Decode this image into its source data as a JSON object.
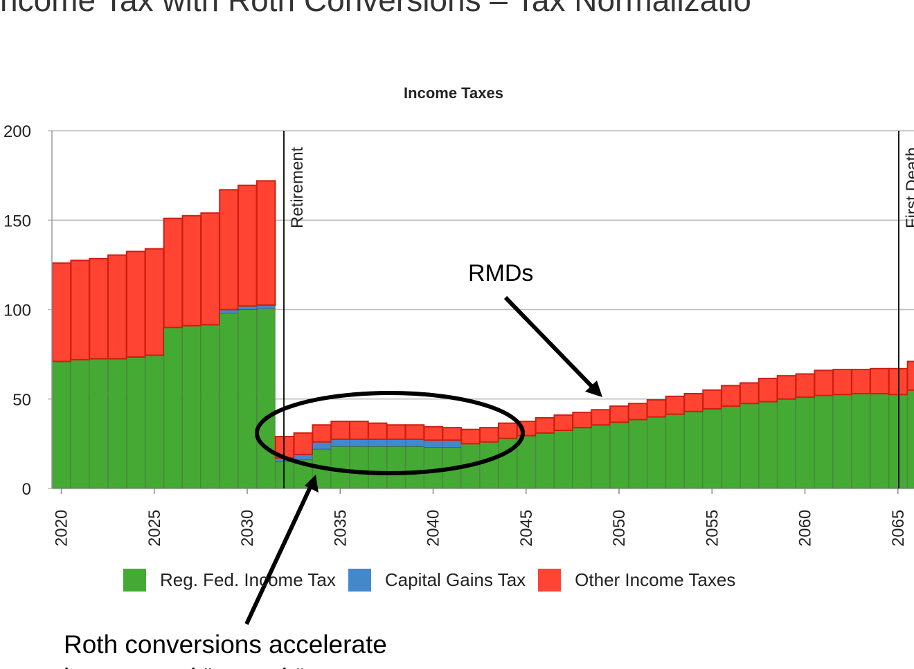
{
  "slide_title": "ncome Tax with Roth Conversions – Tax Normalizatio",
  "colors": {
    "reg_fed": "#44aa33",
    "cap_gains": "#4488cc",
    "other": "#ff4433",
    "bar_outline": "#cc1f10",
    "grid": "#bbbbbb",
    "axis_text": "#222222"
  },
  "annotations": {
    "rmds": "RMDs",
    "roth_line1": "Roth conversions accelerate",
    "roth_line2": "income and “smooth” taxes"
  },
  "chart_data": {
    "type": "bar",
    "stacked": true,
    "title": "Income Taxes",
    "xlabel": "",
    "ylabel": "",
    "ylim": [
      0,
      200
    ],
    "yticks": [
      0,
      50,
      100,
      150,
      200
    ],
    "xticks": [
      2020,
      2025,
      2030,
      2035,
      2040,
      2045,
      2050,
      2055,
      2060,
      2065
    ],
    "grid": true,
    "legend": "bottom",
    "categories": [
      2020,
      2021,
      2022,
      2023,
      2024,
      2025,
      2026,
      2027,
      2028,
      2029,
      2030,
      2031,
      2032,
      2033,
      2034,
      2035,
      2036,
      2037,
      2038,
      2039,
      2040,
      2041,
      2042,
      2043,
      2044,
      2045,
      2046,
      2047,
      2048,
      2049,
      2050,
      2051,
      2052,
      2053,
      2054,
      2055,
      2056,
      2057,
      2058,
      2059,
      2060,
      2061,
      2062,
      2063,
      2064,
      2065,
      2066
    ],
    "series": [
      {
        "name": "Reg. Fed. Income Tax",
        "values": [
          71,
          72,
          72.5,
          72.5,
          73.5,
          74.5,
          90,
          91,
          91.5,
          98,
          100,
          100.5,
          15,
          16,
          22,
          23.5,
          23.5,
          23.5,
          23.5,
          23.5,
          23,
          23,
          25,
          26,
          28,
          29.5,
          31,
          32.5,
          34,
          35.5,
          37,
          38.5,
          40,
          41.5,
          43,
          44.5,
          46,
          47.5,
          48.5,
          50,
          51,
          52,
          52.5,
          53,
          53,
          52.5,
          55
        ]
      },
      {
        "name": "Capital Gains Tax",
        "values": [
          0,
          0,
          0,
          0,
          0,
          0,
          0,
          0,
          0,
          2,
          2,
          2,
          2,
          3,
          4,
          4,
          4,
          4,
          4,
          4,
          4,
          4,
          0,
          0,
          0,
          0,
          0,
          0,
          0,
          0,
          0,
          0,
          0,
          0,
          0,
          0,
          0,
          0,
          0,
          0,
          0,
          0,
          0,
          0,
          0,
          0,
          0
        ]
      },
      {
        "name": "Other Income Taxes",
        "values": [
          55,
          55.5,
          56,
          58,
          59,
          59.5,
          61,
          61.5,
          62.5,
          67,
          67.5,
          69.5,
          12,
          12,
          9.5,
          10,
          10,
          9,
          8,
          8,
          7.5,
          7,
          8,
          8,
          8.5,
          8,
          8.5,
          8.5,
          8.5,
          8.5,
          9,
          9,
          9.5,
          10,
          10,
          10.5,
          11.5,
          11.5,
          13,
          13,
          13,
          14,
          14,
          13.5,
          14,
          14.5,
          16
        ]
      }
    ],
    "markers": [
      {
        "label": "Retirement",
        "x": 2032
      },
      {
        "label": "First Death",
        "x": 2065
      }
    ]
  }
}
